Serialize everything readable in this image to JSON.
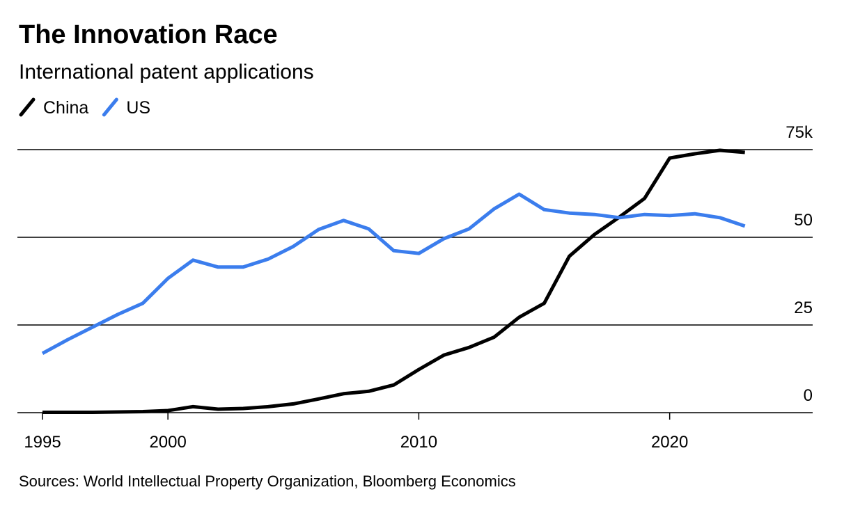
{
  "chart_data": {
    "type": "line",
    "title": "The Innovation Race",
    "subtitle": "International patent applications",
    "source": "Sources: World Intellectual Property Organization, Bloomberg Economics",
    "x": [
      1995,
      1996,
      1997,
      1998,
      1999,
      2000,
      2001,
      2002,
      2003,
      2004,
      2005,
      2006,
      2007,
      2008,
      2009,
      2010,
      2011,
      2012,
      2013,
      2014,
      2015,
      2016,
      2017,
      2018,
      2019,
      2020,
      2021,
      2022,
      2023
    ],
    "series": [
      {
        "name": "China",
        "color": "#000000",
        "values": [
          0.1,
          0.1,
          0.1,
          0.2,
          0.3,
          0.6,
          1.7,
          1.0,
          1.2,
          1.7,
          2.5,
          3.9,
          5.4,
          6.1,
          7.9,
          12.3,
          16.4,
          18.6,
          21.5,
          27.2,
          31.2,
          44.6,
          50.8,
          55.8,
          61.1,
          72.6,
          73.8,
          74.8,
          74.2
        ]
      },
      {
        "name": "US",
        "color": "#3b7ded",
        "values": [
          16.9,
          20.8,
          24.4,
          28.0,
          31.2,
          38.3,
          43.5,
          41.5,
          41.5,
          43.8,
          47.4,
          52.2,
          54.8,
          52.4,
          46.2,
          45.4,
          49.6,
          52.4,
          58.1,
          62.3,
          57.9,
          56.9,
          56.5,
          55.6,
          56.5,
          56.2,
          56.7,
          55.6,
          53.2
        ]
      }
    ],
    "xlim": [
      1994,
      2025.7
    ],
    "xticks": [
      1995,
      2000,
      2010,
      2020
    ],
    "ylim": [
      0,
      75
    ],
    "yticks": [
      0,
      25,
      50,
      {
        "value": 75,
        "label": "75k"
      }
    ],
    "grid": true
  }
}
